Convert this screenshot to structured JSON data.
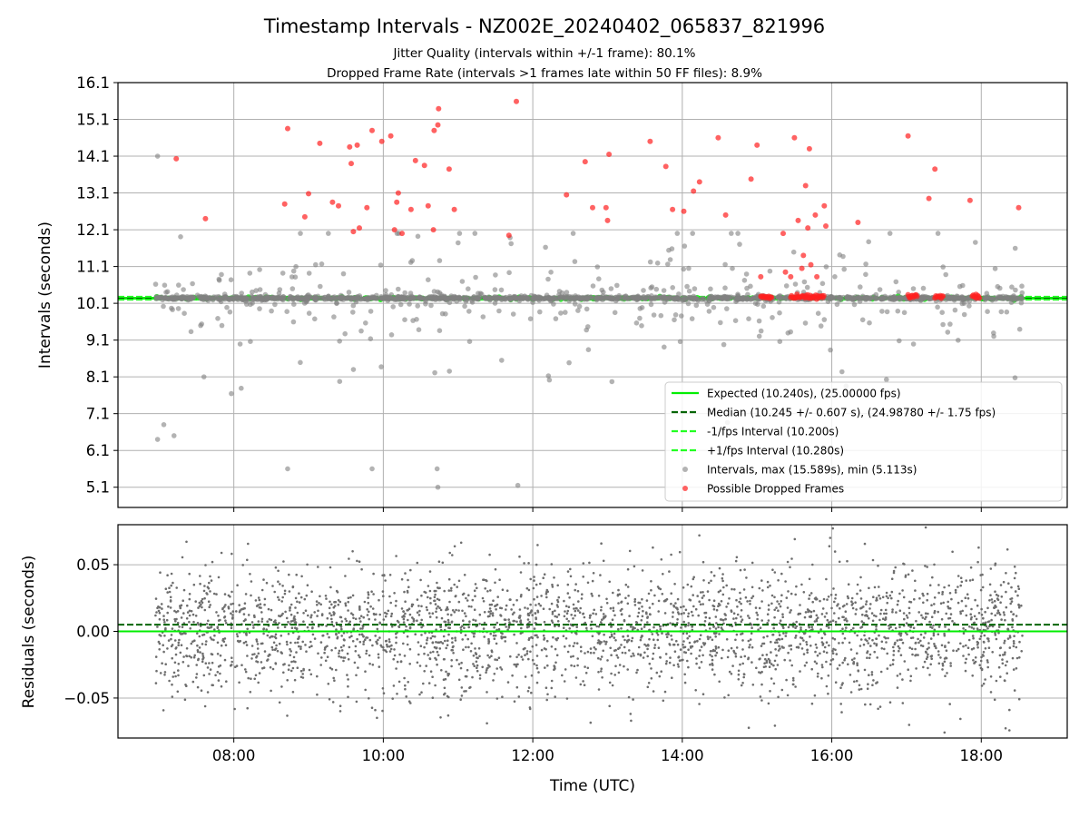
{
  "figure": {
    "title": "Timestamp Intervals - NZ002E_20240402_065837_821996",
    "subtitle_1": "Jitter Quality (intervals within +/-1 frame): 80.1%",
    "subtitle_2": "Dropped Frame Rate (intervals >1 frames late within 50 FF files): 8.9%"
  },
  "colors": {
    "expected": "#00ee00",
    "median": "#006400",
    "bounds": "#22ff22",
    "intervals": "#808080",
    "dropped": "#ff2020",
    "grid": "#b0b0b0"
  },
  "chart_data": [
    {
      "type": "scatter",
      "panel": "intervals",
      "ylabel": "Intervals (seconds)",
      "xlim_hours": [
        6.45,
        19.15
      ],
      "ylim": [
        4.55,
        16.1
      ],
      "x_ticks": [
        8,
        10,
        12,
        14,
        16,
        18
      ],
      "y_ticks": [
        5.1,
        6.1,
        7.1,
        8.1,
        9.1,
        10.1,
        11.1,
        12.1,
        13.1,
        14.1,
        15.1,
        16.1
      ],
      "y_tick_labels": [
        "5.1",
        "6.1",
        "7.1",
        "8.1",
        "9.1",
        "10.1",
        "11.1",
        "12.1",
        "13.1",
        "14.1",
        "15.1",
        "16.1"
      ],
      "grid": true,
      "legend_position": "lower-right",
      "lines": {
        "expected": 10.24,
        "median": 10.245,
        "minus_fps": 10.2,
        "plus_fps": 10.28
      },
      "legend": [
        "Expected (10.240s), (25.00000 fps)",
        "Median (10.245 +/- 0.607 s), (24.98780 +/- 1.75 fps)",
        "-1/fps Interval (10.200s)",
        "+1/fps Interval (10.280s)",
        "Intervals, max (15.589s), min (5.113s)",
        "Possible Dropped Frames"
      ],
      "x_range_data": [
        6.95,
        18.55
      ],
      "dropped_points": [
        [
          7.23,
          14.03
        ],
        [
          7.62,
          12.4
        ],
        [
          8.72,
          14.85
        ],
        [
          8.95,
          12.45
        ],
        [
          9.0,
          13.08
        ],
        [
          9.15,
          14.45
        ],
        [
          9.32,
          12.85
        ],
        [
          9.4,
          12.75
        ],
        [
          9.55,
          14.35
        ],
        [
          9.6,
          12.05
        ],
        [
          9.65,
          14.4
        ],
        [
          9.57,
          13.9
        ],
        [
          9.68,
          12.15
        ],
        [
          9.85,
          14.8
        ],
        [
          9.78,
          12.7
        ],
        [
          9.98,
          14.5
        ],
        [
          10.1,
          14.65
        ],
        [
          10.15,
          12.1
        ],
        [
          10.18,
          12.85
        ],
        [
          10.2,
          13.1
        ],
        [
          10.25,
          12.0
        ],
        [
          10.37,
          12.65
        ],
        [
          10.43,
          13.98
        ],
        [
          10.55,
          13.85
        ],
        [
          10.6,
          12.75
        ],
        [
          10.67,
          12.1
        ],
        [
          10.68,
          14.8
        ],
        [
          10.73,
          14.95
        ],
        [
          10.74,
          15.39
        ],
        [
          10.88,
          13.75
        ],
        [
          10.95,
          12.65
        ],
        [
          8.68,
          12.8
        ],
        [
          11.68,
          11.95
        ],
        [
          11.78,
          15.59
        ],
        [
          12.45,
          13.05
        ],
        [
          12.7,
          13.95
        ],
        [
          12.8,
          12.7
        ],
        [
          12.98,
          12.7
        ],
        [
          13.0,
          12.35
        ],
        [
          13.02,
          14.15
        ],
        [
          13.57,
          14.5
        ],
        [
          13.78,
          13.82
        ],
        [
          13.87,
          12.65
        ],
        [
          14.02,
          12.6
        ],
        [
          14.15,
          13.15
        ],
        [
          14.23,
          13.4
        ],
        [
          14.48,
          14.6
        ],
        [
          14.58,
          12.5
        ],
        [
          14.92,
          13.48
        ],
        [
          15.0,
          14.4
        ],
        [
          15.05,
          10.82
        ],
        [
          15.35,
          12.0
        ],
        [
          15.55,
          12.35
        ],
        [
          15.62,
          11.4
        ],
        [
          15.5,
          14.6
        ],
        [
          15.65,
          13.3
        ],
        [
          15.68,
          12.15
        ],
        [
          15.7,
          14.3
        ],
        [
          15.72,
          11.15
        ],
        [
          15.78,
          12.5
        ],
        [
          15.8,
          10.82
        ],
        [
          15.9,
          12.75
        ],
        [
          15.92,
          12.2
        ],
        [
          16.35,
          12.3
        ],
        [
          17.02,
          14.65
        ],
        [
          17.38,
          13.75
        ],
        [
          17.3,
          12.95
        ],
        [
          17.85,
          12.9
        ],
        [
          18.5,
          12.7
        ],
        [
          15.38,
          10.95
        ],
        [
          15.45,
          10.82
        ],
        [
          15.6,
          11.05
        ]
      ],
      "dropped_clusters": [
        [
          15.05,
          15.2
        ],
        [
          15.45,
          15.9
        ],
        [
          17.02,
          17.15
        ],
        [
          17.38,
          17.5
        ],
        [
          17.88,
          17.98
        ]
      ]
    },
    {
      "type": "scatter",
      "panel": "residuals",
      "xlabel": "Time (UTC)",
      "ylabel": "Residuals (seconds)",
      "xlim_hours": [
        6.45,
        19.15
      ],
      "ylim": [
        -0.08,
        0.08
      ],
      "x_ticks": [
        8,
        10,
        12,
        14,
        16,
        18
      ],
      "x_tick_labels": [
        "08:00",
        "10:00",
        "12:00",
        "14:00",
        "16:00",
        "18:00"
      ],
      "y_ticks": [
        -0.05,
        0.0,
        0.05
      ],
      "y_tick_labels": [
        "−0.05",
        "0.00",
        "0.05"
      ],
      "grid": true,
      "lines": {
        "expected": 0.0,
        "median": 0.005
      },
      "residual_sd": 0.024,
      "point_count": 2950
    }
  ]
}
